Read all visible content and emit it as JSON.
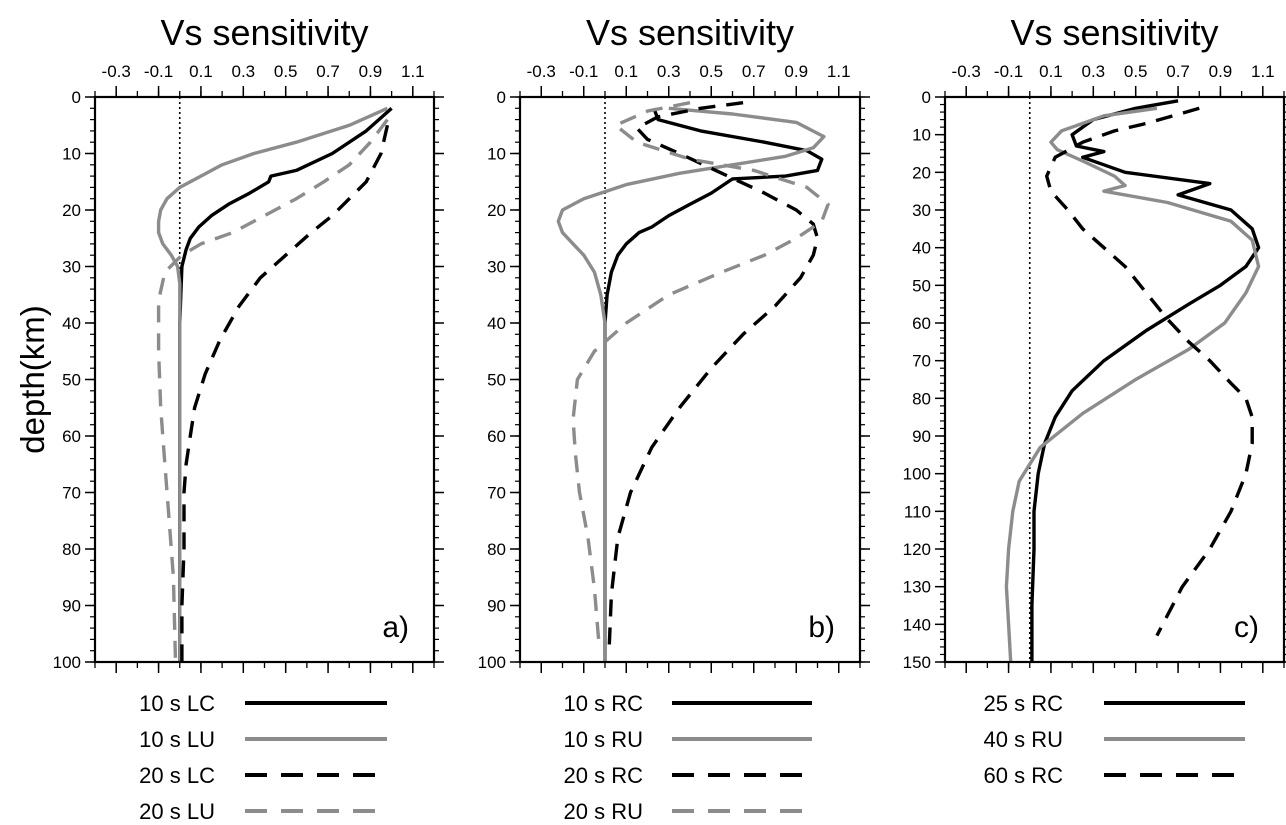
{
  "figure": {
    "ylabel": "depth(km)"
  },
  "styles": {
    "black_solid": {
      "color": "#000000",
      "dash": "none"
    },
    "gray_solid": {
      "color": "#8c8c8c",
      "dash": "none"
    },
    "black_dashed": {
      "color": "#000000",
      "dash": "dashed"
    },
    "gray_dashed": {
      "color": "#8c8c8c",
      "dash": "dashed"
    }
  },
  "chart_data": [
    {
      "type": "line",
      "title": "Vs sensitivity",
      "panel_label": "a)",
      "xlabel": "",
      "ylabel": "depth(km)",
      "xlim": [
        -0.4,
        1.2
      ],
      "ylim": [
        0,
        100
      ],
      "y_inverted": true,
      "x_axis_position": "top",
      "xticks": [
        -0.3,
        -0.1,
        0.1,
        0.3,
        0.5,
        0.7,
        0.9,
        1.1
      ],
      "xtick_labels": [
        "-0.3",
        "-0.1",
        "0.1",
        "0.3",
        "0.5",
        "0.7",
        "0.9",
        "1.1"
      ],
      "yticks": [
        0,
        10,
        20,
        30,
        40,
        50,
        60,
        70,
        80,
        90,
        100
      ],
      "ytick_labels": [
        "0",
        "10",
        "20",
        "30",
        "40",
        "50",
        "60",
        "70",
        "80",
        "90",
        "100"
      ],
      "reference_line_x": 0,
      "series": [
        {
          "name": "10 s LC",
          "style": "black_solid",
          "x": [
            1.0,
            0.88,
            0.72,
            0.55,
            0.43,
            0.42,
            0.33,
            0.23,
            0.15,
            0.09,
            0.05,
            0.03,
            0.01,
            0.005,
            0.0,
            0.0,
            0.0,
            0.0,
            0.0,
            0.0
          ],
          "y": [
            2,
            6,
            10,
            13,
            14,
            15,
            17,
            19,
            21,
            23,
            25,
            27,
            30,
            35,
            40,
            50,
            60,
            70,
            80,
            100
          ]
        },
        {
          "name": "10 s LU",
          "style": "gray_solid",
          "x": [
            0.98,
            0.8,
            0.55,
            0.35,
            0.2,
            0.1,
            0.0,
            -0.06,
            -0.09,
            -0.1,
            -0.1,
            -0.08,
            -0.04,
            -0.01,
            0.0,
            0.0,
            0.0,
            0.0,
            0.0,
            0.0
          ],
          "y": [
            2,
            5,
            8,
            10,
            12,
            14,
            16,
            18,
            20,
            22,
            24,
            26,
            28,
            30,
            33,
            40,
            60,
            80,
            90,
            100
          ]
        },
        {
          "name": "20 s LC",
          "style": "black_dashed",
          "x": [
            0.98,
            0.95,
            0.88,
            0.8,
            0.72,
            0.62,
            0.5,
            0.38,
            0.28,
            0.19,
            0.12,
            0.07,
            0.05,
            0.03,
            0.02,
            0.02,
            0.01,
            0.01
          ],
          "y": [
            5,
            10,
            15,
            18,
            21,
            24,
            28,
            32,
            37,
            43,
            49,
            55,
            60,
            65,
            70,
            80,
            90,
            100
          ]
        },
        {
          "name": "20 s LU",
          "style": "gray_dashed",
          "x": [
            0.98,
            0.9,
            0.8,
            0.68,
            0.55,
            0.4,
            0.25,
            0.1,
            0.01,
            -0.07,
            -0.1,
            -0.1,
            -0.09,
            -0.07,
            -0.05,
            -0.03,
            -0.02
          ],
          "y": [
            4,
            8,
            12,
            15,
            18,
            21,
            24,
            26,
            28,
            31,
            36,
            45,
            55,
            65,
            75,
            85,
            100
          ]
        }
      ]
    },
    {
      "type": "line",
      "title": "Vs sensitivity",
      "panel_label": "b)",
      "xlabel": "",
      "ylabel": "",
      "xlim": [
        -0.4,
        1.2
      ],
      "ylim": [
        0,
        100
      ],
      "y_inverted": true,
      "x_axis_position": "top",
      "xticks": [
        -0.3,
        -0.1,
        0.1,
        0.3,
        0.5,
        0.7,
        0.9,
        1.1
      ],
      "xtick_labels": [
        "-0.3",
        "-0.1",
        "0.1",
        "0.3",
        "0.5",
        "0.7",
        "0.9",
        "1.1"
      ],
      "yticks": [
        0,
        10,
        20,
        30,
        40,
        50,
        60,
        70,
        80,
        90,
        100
      ],
      "ytick_labels": [
        "0",
        "10",
        "20",
        "30",
        "40",
        "50",
        "60",
        "70",
        "80",
        "90",
        "100"
      ],
      "reference_line_x": 0,
      "series": [
        {
          "name": "10 s RC",
          "style": "black_solid",
          "x": [
            0.23,
            0.25,
            0.45,
            0.75,
            0.95,
            1.02,
            1.0,
            0.85,
            0.6,
            0.5,
            0.4,
            0.3,
            0.22,
            0.16,
            0.13,
            0.1,
            0.06,
            0.03,
            0.01,
            0.0,
            0.0,
            0.0
          ],
          "y": [
            2,
            4,
            6,
            8,
            9.5,
            11,
            13,
            14,
            14.5,
            17,
            19,
            21,
            23,
            24,
            25,
            26,
            28,
            31,
            35,
            40,
            60,
            100
          ]
        },
        {
          "name": "10 s RU",
          "style": "gray_solid",
          "x": [
            0.3,
            0.6,
            0.9,
            1.03,
            0.98,
            0.85,
            0.6,
            0.35,
            0.1,
            -0.1,
            -0.2,
            -0.22,
            -0.2,
            -0.15,
            -0.1,
            -0.05,
            -0.02,
            0.0,
            0.0,
            0.0
          ],
          "y": [
            2,
            3,
            4.5,
            7,
            9,
            10.5,
            12,
            13.5,
            15.5,
            18,
            20,
            22,
            24,
            26,
            28,
            31,
            35,
            40,
            60,
            100
          ]
        },
        {
          "name": "20 s RC",
          "style": "black_dashed",
          "x": [
            0.65,
            0.45,
            0.25,
            0.15,
            0.2,
            0.35,
            0.55,
            0.75,
            0.9,
            0.98,
            1.0,
            0.98,
            0.92,
            0.8,
            0.65,
            0.5,
            0.35,
            0.22,
            0.12,
            0.06,
            0.03,
            0.02
          ],
          "y": [
            1,
            2,
            3.5,
            5.5,
            7.5,
            10,
            13.5,
            17,
            20,
            22.5,
            25,
            28,
            32,
            37,
            42,
            48,
            55,
            62,
            70,
            78,
            88,
            97
          ]
        },
        {
          "name": "20 s RU",
          "style": "gray_dashed",
          "x": [
            0.4,
            0.2,
            0.05,
            0.15,
            0.4,
            0.7,
            0.95,
            1.05,
            1.02,
            0.9,
            0.75,
            0.55,
            0.3,
            0.1,
            -0.05,
            -0.13,
            -0.15,
            -0.14,
            -0.12,
            -0.08,
            -0.05,
            -0.03
          ],
          "y": [
            1,
            2.5,
            5,
            8,
            11,
            13,
            16,
            19,
            22,
            25,
            28,
            31,
            35,
            40,
            45,
            50,
            57,
            63,
            70,
            78,
            87,
            96
          ]
        }
      ]
    },
    {
      "type": "line",
      "title": "Vs sensitivity",
      "panel_label": "c)",
      "xlabel": "",
      "ylabel": "",
      "xlim": [
        -0.4,
        1.2
      ],
      "ylim": [
        0,
        150
      ],
      "y_inverted": true,
      "x_axis_position": "top",
      "xticks": [
        -0.3,
        -0.1,
        0.1,
        0.3,
        0.5,
        0.7,
        0.9,
        1.1
      ],
      "xtick_labels": [
        "-0.3",
        "-0.1",
        "0.1",
        "0.3",
        "0.5",
        "0.7",
        "0.9",
        "1.1"
      ],
      "yticks": [
        0,
        10,
        20,
        30,
        40,
        50,
        60,
        70,
        80,
        90,
        100,
        110,
        120,
        130,
        140,
        150
      ],
      "ytick_labels": [
        "0",
        "10",
        "20",
        "30",
        "40",
        "50",
        "60",
        "70",
        "80",
        "90",
        "100",
        "110",
        "120",
        "130",
        "140",
        "150"
      ],
      "reference_line_x": 0,
      "series": [
        {
          "name": "25 s RC",
          "style": "black_solid",
          "x": [
            0.7,
            0.5,
            0.3,
            0.2,
            0.22,
            0.35,
            0.25,
            0.45,
            0.85,
            0.7,
            0.95,
            1.05,
            1.08,
            1.02,
            0.9,
            0.75,
            0.55,
            0.35,
            0.2,
            0.12,
            0.07,
            0.04,
            0.02,
            0.02,
            0.01,
            0.01
          ],
          "y": [
            1,
            3,
            6,
            10,
            13,
            14.5,
            16,
            20,
            23,
            26,
            30,
            35,
            40,
            45,
            50,
            55,
            62,
            70,
            78,
            85,
            92,
            100,
            110,
            120,
            135,
            150
          ]
        },
        {
          "name": "40 s RU",
          "style": "gray_solid",
          "x": [
            0.6,
            0.35,
            0.15,
            0.1,
            0.13,
            0.25,
            0.4,
            0.45,
            0.35,
            0.65,
            0.95,
            1.05,
            1.08,
            1.02,
            0.92,
            0.75,
            0.5,
            0.25,
            0.05,
            -0.05,
            -0.08,
            -0.1,
            -0.11,
            -0.1,
            -0.09
          ],
          "y": [
            3,
            5,
            9,
            12,
            14,
            17,
            21,
            23.5,
            25,
            28,
            33,
            38,
            45,
            52,
            60,
            67,
            75,
            84,
            93,
            102,
            110,
            120,
            130,
            140,
            150
          ]
        },
        {
          "name": "60 s RC",
          "style": "black_dashed",
          "x": [
            0.8,
            0.55,
            0.4,
            0.25,
            0.12,
            0.08,
            0.1,
            0.18,
            0.25,
            0.35,
            0.45,
            0.55,
            0.65,
            0.75,
            0.85,
            0.95,
            1.02,
            1.05,
            1.05,
            1.02,
            0.95,
            0.85,
            0.72,
            0.6
          ],
          "y": [
            3,
            7,
            9,
            12,
            16,
            21,
            25,
            30,
            35,
            40,
            45,
            52,
            59,
            65,
            70,
            76,
            80,
            85,
            92,
            100,
            110,
            120,
            130,
            143
          ]
        }
      ]
    }
  ]
}
